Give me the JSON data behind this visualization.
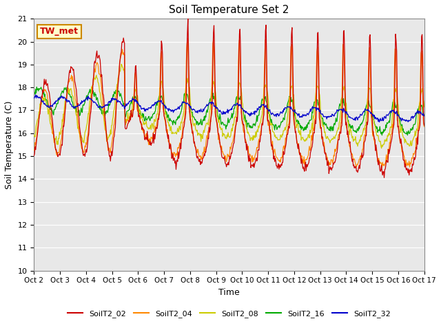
{
  "title": "Soil Temperature Set 2",
  "xlabel": "Time",
  "ylabel": "Soil Temperature (C)",
  "ylim": [
    10.0,
    21.0
  ],
  "yticks": [
    10.0,
    11.0,
    12.0,
    13.0,
    14.0,
    15.0,
    16.0,
    17.0,
    18.0,
    19.0,
    20.0,
    21.0
  ],
  "xtick_labels": [
    "Oct 2",
    "Oct 3",
    "Oct 4",
    "Oct 5",
    "Oct 6",
    "Oct 7",
    "Oct 8",
    "Oct 9",
    "Oct 10",
    "Oct 11",
    "Oct 12",
    "Oct 13",
    "Oct 14",
    "Oct 15",
    "Oct 16",
    "Oct 17"
  ],
  "series_colors": [
    "#cc0000",
    "#ff8800",
    "#cccc00",
    "#00aa00",
    "#0000cc"
  ],
  "series_names": [
    "SoilT2_02",
    "SoilT2_04",
    "SoilT2_08",
    "SoilT2_16",
    "SoilT2_32"
  ],
  "annotation_text": "TW_met",
  "annotation_bbox_facecolor": "#ffffcc",
  "annotation_bbox_edgecolor": "#cc8800",
  "plot_bg_color": "#e8e8e8",
  "n_points": 721,
  "time_days": 15.0
}
